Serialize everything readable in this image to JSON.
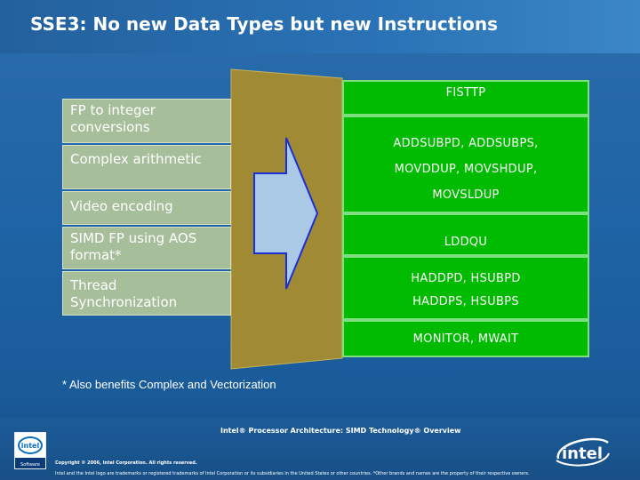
{
  "slide": {
    "title": "SSE3: No new Data Types but new Instructions",
    "footnote": "* Also benefits Complex and Vectorization"
  },
  "categories": [
    "FP to integer conversions",
    "Complex arithmetic",
    "Video encoding",
    "SIMD FP using AOS format*",
    "Thread Synchronization"
  ],
  "instructions": [
    "FISTTP",
    "ADDSUBPD, ADDSUBPS,",
    "MOVDDUP, MOVSHDUP,",
    "MOVSLDUP",
    "LDDQU",
    "HADDPD, HSUBPD",
    "HADDPS, HSUBPS",
    "MONITOR, MWAIT"
  ],
  "footer": {
    "title": "Intel® Processor Architecture: SIMD Technology® Overview",
    "copyright": "Copyright © 2006, Intel Corporation. All rights reserved.",
    "disclaimer": "Intel and the Intel logo are trademarks or registered trademarks of Intel Corporation or its subsidiaries in the United States or other countries. *Other brands and names are the property of their respective owners.",
    "logo_small_text": "intel",
    "logo_small_sub": "Software",
    "logo_big_text": "intel"
  },
  "colors": {
    "background": "#1f64a6",
    "category_box": "#a7be9b",
    "instruction_box": "#00bb00",
    "connector": "#a08a34",
    "arrow_fill": "#a9c9e6",
    "arrow_stroke": "#1a2fd6"
  }
}
